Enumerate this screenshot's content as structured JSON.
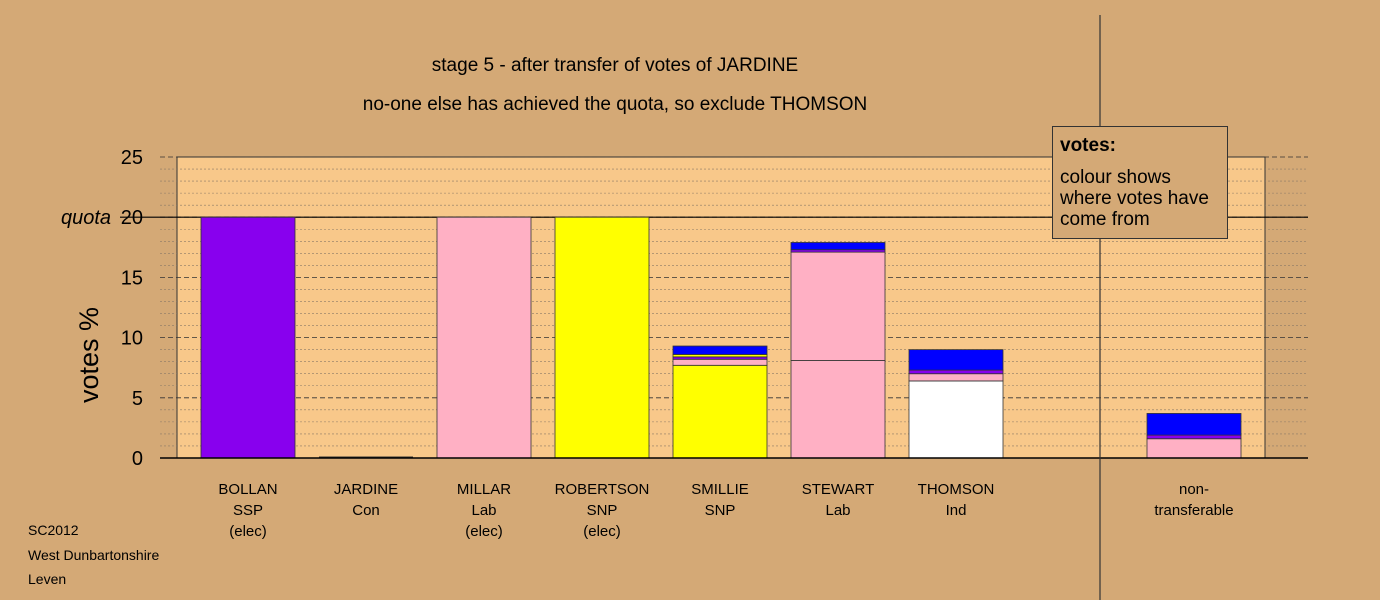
{
  "title_line1": "stage 5 - after transfer of votes of JARDINE",
  "title_line2": "no-one else has achieved the quota, so exclude THOMSON",
  "footer": [
    "SC2012",
    "West Dunbartonshire",
    "Leven"
  ],
  "legend": {
    "title": "votes:",
    "text": "colour shows where votes have come from"
  },
  "colors": {
    "background": "#d4a976",
    "plot_background": "#f8c88a",
    "SSP": "#8800ee",
    "Lab": "#ffb0c4",
    "SNP": "#ffff00",
    "Ind": "#ffffff",
    "Con": "#0000ff"
  },
  "chart_data": {
    "type": "bar",
    "stacked": true,
    "ylabel": "votes %",
    "ylim": [
      0,
      25
    ],
    "yticks": [
      0,
      5,
      10,
      15,
      20,
      25
    ],
    "quota": {
      "value": 20,
      "label": "quota"
    },
    "grid": true,
    "candidates": [
      {
        "name": "BOLLAN",
        "party": "SSP",
        "status": "(elec)",
        "segments": [
          {
            "source": "SSP",
            "value": 20.0
          }
        ]
      },
      {
        "name": "JARDINE",
        "party": "Con",
        "status": "",
        "segments": []
      },
      {
        "name": "MILLAR",
        "party": "Lab",
        "status": "(elec)",
        "segments": [
          {
            "source": "Lab",
            "value": 20.0
          }
        ]
      },
      {
        "name": "ROBERTSON",
        "party": "SNP",
        "status": "(elec)",
        "segments": [
          {
            "source": "SNP",
            "value": 20.0
          }
        ]
      },
      {
        "name": "SMILLIE",
        "party": "SNP",
        "status": "",
        "segments": [
          {
            "source": "SNP",
            "value": 7.7
          },
          {
            "source": "Lab",
            "value": 0.5
          },
          {
            "source": "SSP",
            "value": 0.2
          },
          {
            "source": "SNP",
            "value": 0.2
          },
          {
            "source": "Con",
            "value": 0.7
          }
        ]
      },
      {
        "name": "STEWART",
        "party": "Lab",
        "status": "",
        "segments": [
          {
            "source": "Lab",
            "value": 8.1
          },
          {
            "source": "Lab",
            "value": 9.0
          },
          {
            "source": "SSP",
            "value": 0.2
          },
          {
            "source": "Con",
            "value": 0.6
          }
        ]
      },
      {
        "name": "THOMSON",
        "party": "Ind",
        "status": "",
        "segments": [
          {
            "source": "Ind",
            "value": 6.4
          },
          {
            "source": "Lab",
            "value": 0.6
          },
          {
            "source": "SSP",
            "value": 0.3
          },
          {
            "source": "Con",
            "value": 1.7
          }
        ]
      }
    ],
    "non_transferable": {
      "label": "non-\ntransferable",
      "segments": [
        {
          "source": "Lab",
          "value": 1.6
        },
        {
          "source": "SSP",
          "value": 0.3
        },
        {
          "source": "Con",
          "value": 1.8
        }
      ]
    }
  }
}
